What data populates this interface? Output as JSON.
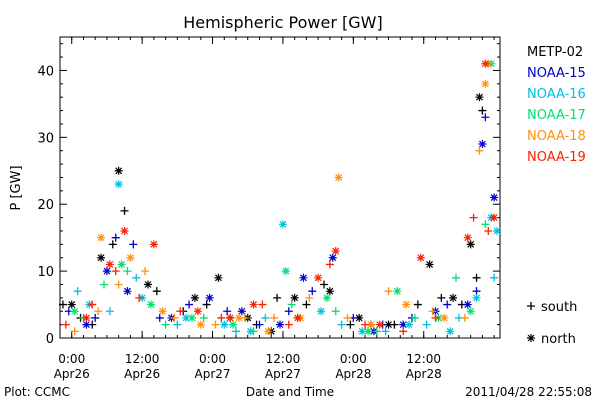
{
  "chart_data": {
    "type": "scatter",
    "title": "Hemispheric Power [GW]",
    "xlabel": "Date and Time",
    "ylabel": "P [GW]",
    "xlim": [
      "2011-04-25T22:00",
      "2011-04-29T01:00"
    ],
    "ylim": [
      0,
      45
    ],
    "y_ticks": [
      0,
      10,
      20,
      30,
      40
    ],
    "x_ticks": [
      {
        "at": "2011-04-26T00:00",
        "time": "0:00",
        "date": "Apr26"
      },
      {
        "at": "2011-04-26T12:00",
        "time": "12:00",
        "date": "Apr26"
      },
      {
        "at": "2011-04-27T00:00",
        "time": "0:00",
        "date": "Apr27"
      },
      {
        "at": "2011-04-27T12:00",
        "time": "12:00",
        "date": "Apr27"
      },
      {
        "at": "2011-04-28T00:00",
        "time": "0:00",
        "date": "Apr28"
      },
      {
        "at": "2011-04-28T12:00",
        "time": "12:00",
        "date": "Apr28"
      }
    ],
    "grid": false,
    "legend_position": "right",
    "series": [
      {
        "name": "METP-02",
        "color": "#000000",
        "plus": [
          [
            "2011-04-25T22:30",
            5
          ],
          [
            "2011-04-26T01:30",
            3
          ],
          [
            "2011-04-26T03:30",
            2
          ],
          [
            "2011-04-26T07:00",
            14
          ],
          [
            "2011-04-26T09:00",
            19
          ],
          [
            "2011-04-26T14:30",
            7
          ],
          [
            "2011-04-26T19:00",
            4
          ],
          [
            "2011-04-26T23:00",
            5
          ],
          [
            "2011-04-27T03:00",
            3
          ],
          [
            "2011-04-27T07:30",
            2
          ],
          [
            "2011-04-27T11:00",
            6
          ],
          [
            "2011-04-27T16:00",
            5
          ],
          [
            "2011-04-27T19:00",
            8
          ],
          [
            "2011-04-27T23:30",
            2
          ],
          [
            "2011-04-28T03:00",
            2
          ],
          [
            "2011-04-28T07:00",
            2
          ],
          [
            "2011-04-28T11:00",
            5
          ],
          [
            "2011-04-28T15:00",
            6
          ],
          [
            "2011-04-28T18:30",
            5
          ],
          [
            "2011-04-28T21:00",
            9
          ],
          [
            "2011-04-28T22:00",
            34
          ]
        ],
        "star": [
          [
            "2011-04-26T00:00",
            5
          ],
          [
            "2011-04-26T05:00",
            12
          ],
          [
            "2011-04-26T08:00",
            25
          ],
          [
            "2011-04-26T13:00",
            8
          ],
          [
            "2011-04-26T21:00",
            6
          ],
          [
            "2011-04-27T01:00",
            9
          ],
          [
            "2011-04-27T06:00",
            3
          ],
          [
            "2011-04-27T10:00",
            1
          ],
          [
            "2011-04-27T14:00",
            6
          ],
          [
            "2011-04-27T20:00",
            7
          ],
          [
            "2011-04-28T01:00",
            3
          ],
          [
            "2011-04-28T06:00",
            2
          ],
          [
            "2011-04-28T13:00",
            11
          ],
          [
            "2011-04-28T17:00",
            6
          ],
          [
            "2011-04-28T20:00",
            14
          ],
          [
            "2011-04-28T21:30",
            36
          ]
        ]
      },
      {
        "name": "NOAA-15",
        "color": "#0000cc",
        "plus": [
          [
            "2011-04-25T23:30",
            4
          ],
          [
            "2011-04-26T04:00",
            3
          ],
          [
            "2011-04-26T07:30",
            15
          ],
          [
            "2011-04-26T10:30",
            14
          ],
          [
            "2011-04-26T15:00",
            3
          ],
          [
            "2011-04-26T20:00",
            5
          ],
          [
            "2011-04-27T02:30",
            4
          ],
          [
            "2011-04-27T08:00",
            2
          ],
          [
            "2011-04-27T13:00",
            4
          ],
          [
            "2011-04-27T17:00",
            7
          ],
          [
            "2011-04-28T00:00",
            3
          ],
          [
            "2011-04-28T05:00",
            2
          ],
          [
            "2011-04-28T10:00",
            3
          ],
          [
            "2011-04-28T16:00",
            5
          ],
          [
            "2011-04-28T21:00",
            7
          ],
          [
            "2011-04-28T22:30",
            33
          ]
        ],
        "star": [
          [
            "2011-04-26T02:30",
            2
          ],
          [
            "2011-04-26T06:00",
            10
          ],
          [
            "2011-04-26T09:30",
            7
          ],
          [
            "2011-04-26T17:00",
            3
          ],
          [
            "2011-04-26T23:30",
            6
          ],
          [
            "2011-04-27T05:00",
            4
          ],
          [
            "2011-04-27T11:30",
            2
          ],
          [
            "2011-04-27T15:30",
            9
          ],
          [
            "2011-04-27T20:30",
            12
          ],
          [
            "2011-04-28T03:30",
            1
          ],
          [
            "2011-04-28T08:30",
            2
          ],
          [
            "2011-04-28T14:00",
            4
          ],
          [
            "2011-04-28T19:30",
            5
          ],
          [
            "2011-04-28T22:00",
            29
          ],
          [
            "2011-04-29T00:00",
            21
          ]
        ]
      },
      {
        "name": "NOAA-16",
        "color": "#00c0e0",
        "plus": [
          [
            "2011-04-26T01:00",
            7
          ],
          [
            "2011-04-26T06:30",
            4
          ],
          [
            "2011-04-26T11:00",
            9
          ],
          [
            "2011-04-26T18:00",
            2
          ],
          [
            "2011-04-27T04:00",
            1
          ],
          [
            "2011-04-27T09:00",
            3
          ],
          [
            "2011-04-27T14:30",
            3
          ],
          [
            "2011-04-27T22:00",
            2
          ],
          [
            "2011-04-28T05:30",
            1
          ],
          [
            "2011-04-28T12:30",
            2
          ],
          [
            "2011-04-28T18:00",
            3
          ],
          [
            "2011-04-29T00:00",
            9
          ]
        ],
        "star": [
          [
            "2011-04-26T03:00",
            5
          ],
          [
            "2011-04-26T08:00",
            23
          ],
          [
            "2011-04-26T12:00",
            6
          ],
          [
            "2011-04-26T19:30",
            3
          ],
          [
            "2011-04-27T02:00",
            2
          ],
          [
            "2011-04-27T06:30",
            1
          ],
          [
            "2011-04-27T12:00",
            17
          ],
          [
            "2011-04-27T18:30",
            4
          ],
          [
            "2011-04-28T01:30",
            1
          ],
          [
            "2011-04-28T09:30",
            2
          ],
          [
            "2011-04-28T16:30",
            1
          ],
          [
            "2011-04-28T21:00",
            6
          ],
          [
            "2011-04-28T23:30",
            18
          ],
          [
            "2011-04-29T00:30",
            16
          ]
        ]
      },
      {
        "name": "NOAA-17",
        "color": "#00e070",
        "plus": [
          [
            "2011-04-26T02:00",
            3
          ],
          [
            "2011-04-26T05:30",
            8
          ],
          [
            "2011-04-26T09:30",
            10
          ],
          [
            "2011-04-26T16:00",
            2
          ],
          [
            "2011-04-26T22:30",
            3
          ],
          [
            "2011-04-27T07:00",
            1
          ],
          [
            "2011-04-27T13:30",
            5
          ],
          [
            "2011-04-27T21:00",
            4
          ],
          [
            "2011-04-28T04:00",
            1
          ],
          [
            "2011-04-28T10:30",
            3
          ],
          [
            "2011-04-28T17:30",
            9
          ],
          [
            "2011-04-28T22:30",
            17
          ]
        ],
        "star": [
          [
            "2011-04-26T00:30",
            4
          ],
          [
            "2011-04-26T08:30",
            11
          ],
          [
            "2011-04-26T13:30",
            5
          ],
          [
            "2011-04-26T20:30",
            3
          ],
          [
            "2011-04-27T03:30",
            2
          ],
          [
            "2011-04-27T12:30",
            10
          ],
          [
            "2011-04-27T19:30",
            6
          ],
          [
            "2011-04-28T02:30",
            1
          ],
          [
            "2011-04-28T07:30",
            7
          ],
          [
            "2011-04-28T14:30",
            3
          ],
          [
            "2011-04-28T20:00",
            4
          ],
          [
            "2011-04-28T23:30",
            41
          ]
        ]
      },
      {
        "name": "NOAA-18",
        "color": "#ff9010",
        "plus": [
          [
            "2011-04-26T00:30",
            1
          ],
          [
            "2011-04-26T04:30",
            4
          ],
          [
            "2011-04-26T08:00",
            8
          ],
          [
            "2011-04-26T12:30",
            10
          ],
          [
            "2011-04-26T17:30",
            3
          ],
          [
            "2011-04-27T00:30",
            2
          ],
          [
            "2011-04-27T05:30",
            3
          ],
          [
            "2011-04-27T10:30",
            3
          ],
          [
            "2011-04-27T16:30",
            6
          ],
          [
            "2011-04-27T23:00",
            3
          ],
          [
            "2011-04-28T06:00",
            7
          ],
          [
            "2011-04-28T13:30",
            4
          ],
          [
            "2011-04-28T19:00",
            3
          ],
          [
            "2011-04-28T21:30",
            28
          ]
        ],
        "star": [
          [
            "2011-04-26T05:00",
            15
          ],
          [
            "2011-04-26T10:00",
            12
          ],
          [
            "2011-04-26T15:30",
            4
          ],
          [
            "2011-04-26T22:00",
            2
          ],
          [
            "2011-04-27T04:30",
            3
          ],
          [
            "2011-04-27T09:30",
            1
          ],
          [
            "2011-04-27T15:00",
            3
          ],
          [
            "2011-04-27T21:30",
            24
          ],
          [
            "2011-04-28T03:00",
            2
          ],
          [
            "2011-04-28T09:00",
            5
          ],
          [
            "2011-04-28T15:30",
            3
          ],
          [
            "2011-04-28T22:30",
            38
          ],
          [
            "2011-04-28T23:00",
            41
          ]
        ]
      },
      {
        "name": "NOAA-19",
        "color": "#ff2000",
        "plus": [
          [
            "2011-04-25T23:00",
            2
          ],
          [
            "2011-04-26T03:30",
            5
          ],
          [
            "2011-04-26T07:30",
            10
          ],
          [
            "2011-04-26T11:30",
            6
          ],
          [
            "2011-04-26T18:30",
            4
          ],
          [
            "2011-04-27T01:30",
            3
          ],
          [
            "2011-04-27T08:30",
            5
          ],
          [
            "2011-04-27T13:00",
            2
          ],
          [
            "2011-04-27T20:00",
            11
          ],
          [
            "2011-04-28T02:00",
            2
          ],
          [
            "2011-04-28T08:30",
            1
          ],
          [
            "2011-04-28T14:00",
            3
          ],
          [
            "2011-04-28T20:30",
            18
          ],
          [
            "2011-04-28T23:00",
            16
          ]
        ],
        "star": [
          [
            "2011-04-26T02:30",
            3
          ],
          [
            "2011-04-26T06:30",
            11
          ],
          [
            "2011-04-26T09:00",
            16
          ],
          [
            "2011-04-26T14:00",
            14
          ],
          [
            "2011-04-26T21:30",
            4
          ],
          [
            "2011-04-27T03:00",
            3
          ],
          [
            "2011-04-27T07:00",
            5
          ],
          [
            "2011-04-27T14:30",
            3
          ],
          [
            "2011-04-27T18:00",
            9
          ],
          [
            "2011-04-27T21:00",
            13
          ],
          [
            "2011-04-28T04:30",
            2
          ],
          [
            "2011-04-28T11:30",
            12
          ],
          [
            "2011-04-28T19:30",
            15
          ],
          [
            "2011-04-28T22:30",
            41
          ],
          [
            "2011-04-29T00:00",
            18
          ]
        ]
      }
    ],
    "marker_legend": [
      {
        "symbol": "+",
        "label": "south"
      },
      {
        "symbol": "*",
        "label": "north"
      }
    ]
  },
  "footer": {
    "credit": "Plot: CCMC",
    "timestamp": "2011/04/28 22:55:08"
  }
}
